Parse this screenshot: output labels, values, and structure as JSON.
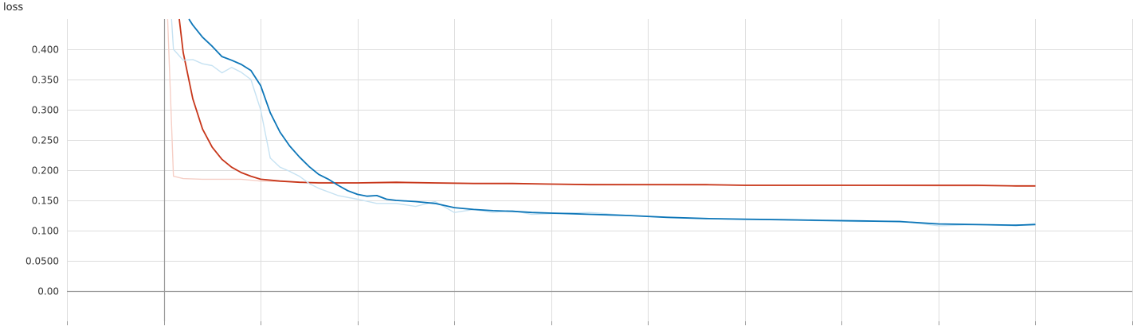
{
  "chart_data": {
    "type": "line",
    "ylabel": "loss",
    "xlabel": "",
    "title": "",
    "xlim": [
      -0.5,
      5.0
    ],
    "ylim": [
      -0.05,
      0.45
    ],
    "x_ticks": [
      -0.5,
      0,
      0.5,
      1.0,
      1.5,
      2.0,
      2.5,
      3.0,
      3.5,
      4.0,
      4.5,
      5.0
    ],
    "y_ticks": [
      0.0,
      0.05,
      0.1,
      0.15,
      0.2,
      0.25,
      0.3,
      0.35,
      0.4
    ],
    "y_tick_labels": [
      "0.00",
      "0.0500",
      "0.100",
      "0.150",
      "0.200",
      "0.250",
      "0.300",
      "0.350",
      "0.400"
    ],
    "grid": true,
    "colors": {
      "blue": "#0d76b8",
      "blue_raw": "#c6e2f2",
      "red": "#c7361a",
      "red_raw": "#f6cfc6",
      "grid": "#dddddd",
      "axis": "#999999"
    },
    "series": [
      {
        "color_key": "red_raw",
        "x": [
          0.02,
          0.05,
          0.1,
          0.2,
          0.3,
          0.4,
          0.5,
          0.75,
          1.0,
          1.5,
          2.0,
          2.5,
          3.0,
          3.5,
          4.0,
          4.5
        ],
        "values": [
          0.45,
          0.19,
          0.186,
          0.185,
          0.185,
          0.185,
          0.182,
          0.18,
          0.179,
          0.178,
          0.177,
          0.176,
          0.175,
          0.175,
          0.174,
          0.174
        ]
      },
      {
        "color_key": "red",
        "x": [
          0.08,
          0.1,
          0.15,
          0.2,
          0.25,
          0.3,
          0.35,
          0.4,
          0.45,
          0.5,
          0.6,
          0.7,
          0.8,
          0.9,
          1.0,
          1.2,
          1.4,
          1.6,
          1.8,
          2.0,
          2.2,
          2.4,
          2.6,
          2.8,
          3.0,
          3.2,
          3.4,
          3.6,
          3.8,
          4.0,
          4.2,
          4.4,
          4.5
        ],
        "values": [
          0.45,
          0.395,
          0.318,
          0.268,
          0.238,
          0.218,
          0.205,
          0.196,
          0.19,
          0.185,
          0.182,
          0.18,
          0.179,
          0.179,
          0.179,
          0.18,
          0.179,
          0.178,
          0.178,
          0.177,
          0.176,
          0.176,
          0.176,
          0.176,
          0.175,
          0.175,
          0.175,
          0.175,
          0.175,
          0.175,
          0.175,
          0.174,
          0.174
        ]
      },
      {
        "color_key": "blue_raw",
        "x": [
          0.04,
          0.05,
          0.1,
          0.15,
          0.2,
          0.25,
          0.3,
          0.35,
          0.4,
          0.45,
          0.5,
          0.55,
          0.6,
          0.65,
          0.7,
          0.75,
          0.8,
          0.9,
          1.0,
          1.1,
          1.2,
          1.3,
          1.4,
          1.5,
          1.6,
          1.7,
          1.8,
          1.9,
          2.0,
          2.2,
          2.4,
          2.6,
          2.8,
          3.0,
          3.2,
          3.4,
          3.6,
          3.8,
          4.0,
          4.2,
          4.4,
          4.5
        ],
        "values": [
          0.45,
          0.4,
          0.382,
          0.383,
          0.376,
          0.373,
          0.361,
          0.37,
          0.362,
          0.35,
          0.3,
          0.22,
          0.205,
          0.198,
          0.19,
          0.178,
          0.17,
          0.158,
          0.152,
          0.145,
          0.145,
          0.14,
          0.148,
          0.13,
          0.135,
          0.13,
          0.133,
          0.127,
          0.128,
          0.13,
          0.125,
          0.122,
          0.12,
          0.118,
          0.118,
          0.116,
          0.115,
          0.116,
          0.108,
          0.11,
          0.108,
          0.112
        ]
      },
      {
        "color_key": "blue",
        "x": [
          0.13,
          0.15,
          0.2,
          0.25,
          0.3,
          0.35,
          0.4,
          0.45,
          0.5,
          0.55,
          0.6,
          0.65,
          0.7,
          0.75,
          0.8,
          0.85,
          0.9,
          0.95,
          1.0,
          1.05,
          1.1,
          1.15,
          1.2,
          1.3,
          1.4,
          1.5,
          1.6,
          1.7,
          1.8,
          1.9,
          2.0,
          2.1,
          2.2,
          2.4,
          2.6,
          2.8,
          3.0,
          3.2,
          3.4,
          3.6,
          3.8,
          4.0,
          4.2,
          4.4,
          4.5
        ],
        "values": [
          0.45,
          0.44,
          0.42,
          0.405,
          0.388,
          0.382,
          0.375,
          0.365,
          0.34,
          0.295,
          0.263,
          0.24,
          0.222,
          0.206,
          0.193,
          0.185,
          0.175,
          0.166,
          0.16,
          0.157,
          0.158,
          0.152,
          0.15,
          0.148,
          0.145,
          0.138,
          0.135,
          0.133,
          0.132,
          0.13,
          0.129,
          0.128,
          0.127,
          0.125,
          0.122,
          0.12,
          0.119,
          0.118,
          0.117,
          0.116,
          0.115,
          0.111,
          0.11,
          0.109,
          0.11
        ]
      }
    ]
  }
}
